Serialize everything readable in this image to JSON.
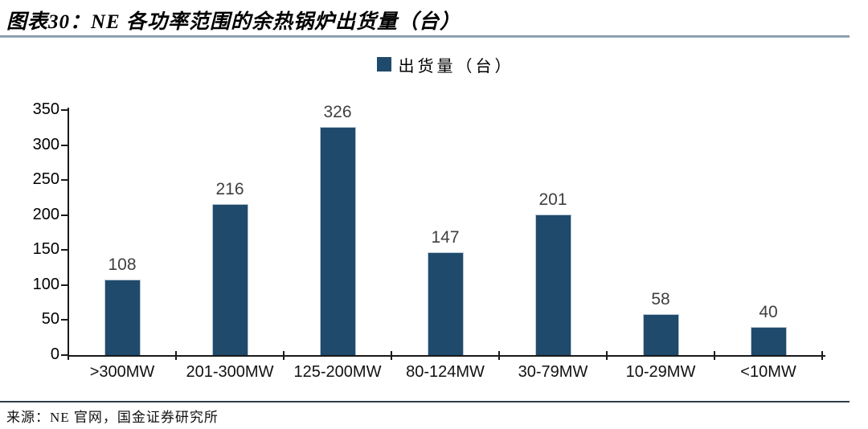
{
  "title": "图表30：NE 各功率范围的余热锅炉出货量（台）",
  "legend": {
    "label": "出货量（台）"
  },
  "source": "来源：NE 官网，国金证券研究所",
  "colors": {
    "bar": "#1F4A6C",
    "bar_border": "#B9C7D3",
    "axis": "#1A1A1A",
    "title_rule": "#72879B",
    "source_rule": "#2F3E4A",
    "value_label": "#3F3F3F"
  },
  "chart_data": {
    "type": "bar",
    "title": "图表30：NE 各功率范围的余热锅炉出货量（台）",
    "series_name": "出货量（台）",
    "categories": [
      ">300MW",
      "201-300MW",
      "125-200MW",
      "80-124MW",
      "30-79MW",
      "10-29MW",
      "<10MW"
    ],
    "values": [
      108,
      216,
      326,
      147,
      201,
      58,
      40
    ],
    "xlabel": "",
    "ylabel": "",
    "ylim": [
      0,
      350
    ],
    "yticks": [
      0,
      50,
      100,
      150,
      200,
      250,
      300,
      350
    ],
    "grid": false,
    "legend_position": "top-center",
    "bar_color": "#1F4A6C"
  }
}
